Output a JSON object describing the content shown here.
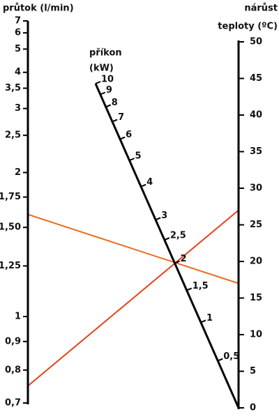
{
  "chart_data": {
    "type": "nomogram",
    "left_axis": {
      "title": "průtok (l/min)",
      "ticks": [
        {
          "value": 0.7,
          "label": "0,7"
        },
        {
          "value": 0.8,
          "label": "0,8"
        },
        {
          "value": 0.9,
          "label": "0,9"
        },
        1,
        {
          "value": 1.25,
          "label": "1,25"
        },
        {
          "value": 1.5,
          "label": "1,50"
        },
        {
          "value": 1.75,
          "label": "1,75"
        },
        2,
        {
          "value": 2.5,
          "label": "2,5"
        },
        3,
        {
          "value": 3.5,
          "label": "3,5"
        },
        4,
        5,
        6,
        7
      ]
    },
    "middle_axis": {
      "title": [
        "příkon",
        "(kW)"
      ],
      "lim": [
        0,
        10
      ],
      "ticks": [
        {
          "value": 0.5,
          "label": "0,5"
        },
        1,
        {
          "value": 1.5,
          "label": "1,5"
        },
        2,
        {
          "value": 2.5,
          "label": "2,5"
        },
        3,
        4,
        5,
        6,
        7,
        8,
        9,
        10
      ]
    },
    "right_axis": {
      "title": [
        "nárůst",
        "teploty (ºC)"
      ],
      "lim": [
        0,
        50
      ],
      "ticks": [
        0,
        5,
        10,
        15,
        20,
        25,
        30,
        35,
        40,
        45,
        50
      ]
    },
    "lines": [
      {
        "left": 1.6,
        "right": 17,
        "color": "#ec6a1c"
      },
      {
        "left": 0.75,
        "right": 27,
        "color": "#e8401a"
      }
    ]
  }
}
